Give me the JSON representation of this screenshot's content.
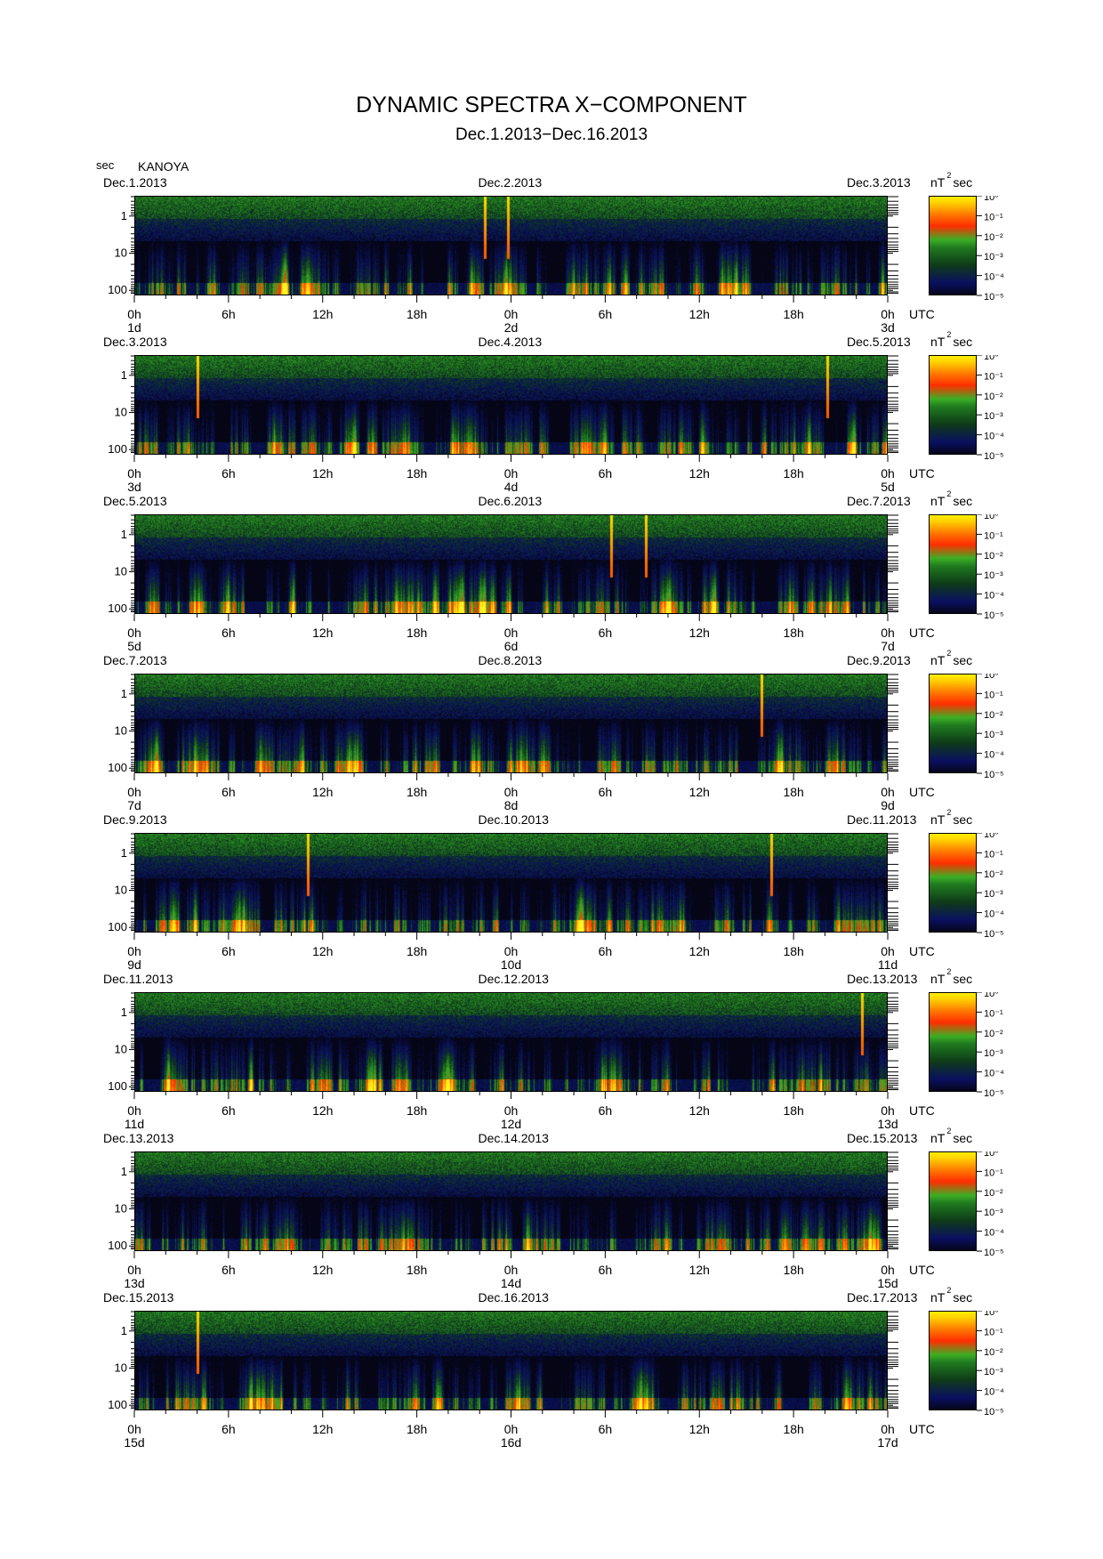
{
  "title": "DYNAMIC SPECTRA X−COMPONENT",
  "subtitle": "Dec.1.2013−Dec.16.2013",
  "y_unit_label": "sec",
  "station": "KANOYA",
  "colorbar_unit": "nT",
  "colorbar_unit_exp": "2",
  "colorbar_unit_suffix": "sec",
  "time_axis_label": "UTC",
  "colors": {
    "background": "#ffffff",
    "plot_background": "#000000"
  },
  "chart_data": {
    "type": "heatmap",
    "title": "DYNAMIC SPECTRA X−COMPONENT",
    "subtitle": "Dec.1.2013−Dec.16.2013",
    "ylabel": "sec",
    "y_scale": "log",
    "y_ticks": [
      "1",
      "10",
      "100"
    ],
    "x_ticks": [
      "0h",
      "6h",
      "12h",
      "18h",
      "0h",
      "6h",
      "12h",
      "18h",
      "0h"
    ],
    "colorbar": {
      "scale": "log",
      "unit": "nT² sec",
      "ticks": [
        "10⁰",
        "10⁻¹",
        "10⁻²",
        "10⁻³",
        "10⁻⁴",
        "10⁻⁵"
      ],
      "colors": [
        "#fff000",
        "#ff7a00",
        "#ff2e00",
        "#3cae25",
        "#1f7a1f",
        "#0a1060",
        "#05051a"
      ]
    },
    "panels": [
      {
        "start_date": "Dec.1.2013",
        "mid_date": "Dec.2.2013",
        "end_date": "Dec.3.2013",
        "day_labels": [
          "1d",
          "2d",
          "3d"
        ],
        "impulses_h": [
          22.3,
          23.8
        ]
      },
      {
        "start_date": "Dec.3.2013",
        "mid_date": "Dec.4.2013",
        "end_date": "Dec.5.2013",
        "day_labels": [
          "3d",
          "4d",
          "5d"
        ],
        "impulses_h": [
          4.0,
          44.2
        ]
      },
      {
        "start_date": "Dec.5.2013",
        "mid_date": "Dec.6.2013",
        "end_date": "Dec.7.2013",
        "day_labels": [
          "5d",
          "6d",
          "7d"
        ],
        "impulses_h": [
          30.4,
          32.6
        ]
      },
      {
        "start_date": "Dec.7.2013",
        "mid_date": "Dec.8.2013",
        "end_date": "Dec.9.2013",
        "day_labels": [
          "7d",
          "8d",
          "9d"
        ],
        "impulses_h": [
          40.0
        ]
      },
      {
        "start_date": "Dec.9.2013",
        "mid_date": "Dec.10.2013",
        "end_date": "Dec.11.2013",
        "day_labels": [
          "9d",
          "10d",
          "11d"
        ],
        "impulses_h": [
          11.0,
          40.6
        ]
      },
      {
        "start_date": "Dec.11.2013",
        "mid_date": "Dec.12.2013",
        "end_date": "Dec.13.2013",
        "day_labels": [
          "11d",
          "12d",
          "13d"
        ],
        "impulses_h": [
          46.4
        ]
      },
      {
        "start_date": "Dec.13.2013",
        "mid_date": "Dec.14.2013",
        "end_date": "Dec.15.2013",
        "day_labels": [
          "13d",
          "14d",
          "15d"
        ],
        "impulses_h": []
      },
      {
        "start_date": "Dec.15.2013",
        "mid_date": "Dec.16.2013",
        "end_date": "Dec.17.2013",
        "day_labels": [
          "15d",
          "16d",
          "17d"
        ],
        "impulses_h": [
          4.0
        ]
      }
    ]
  }
}
